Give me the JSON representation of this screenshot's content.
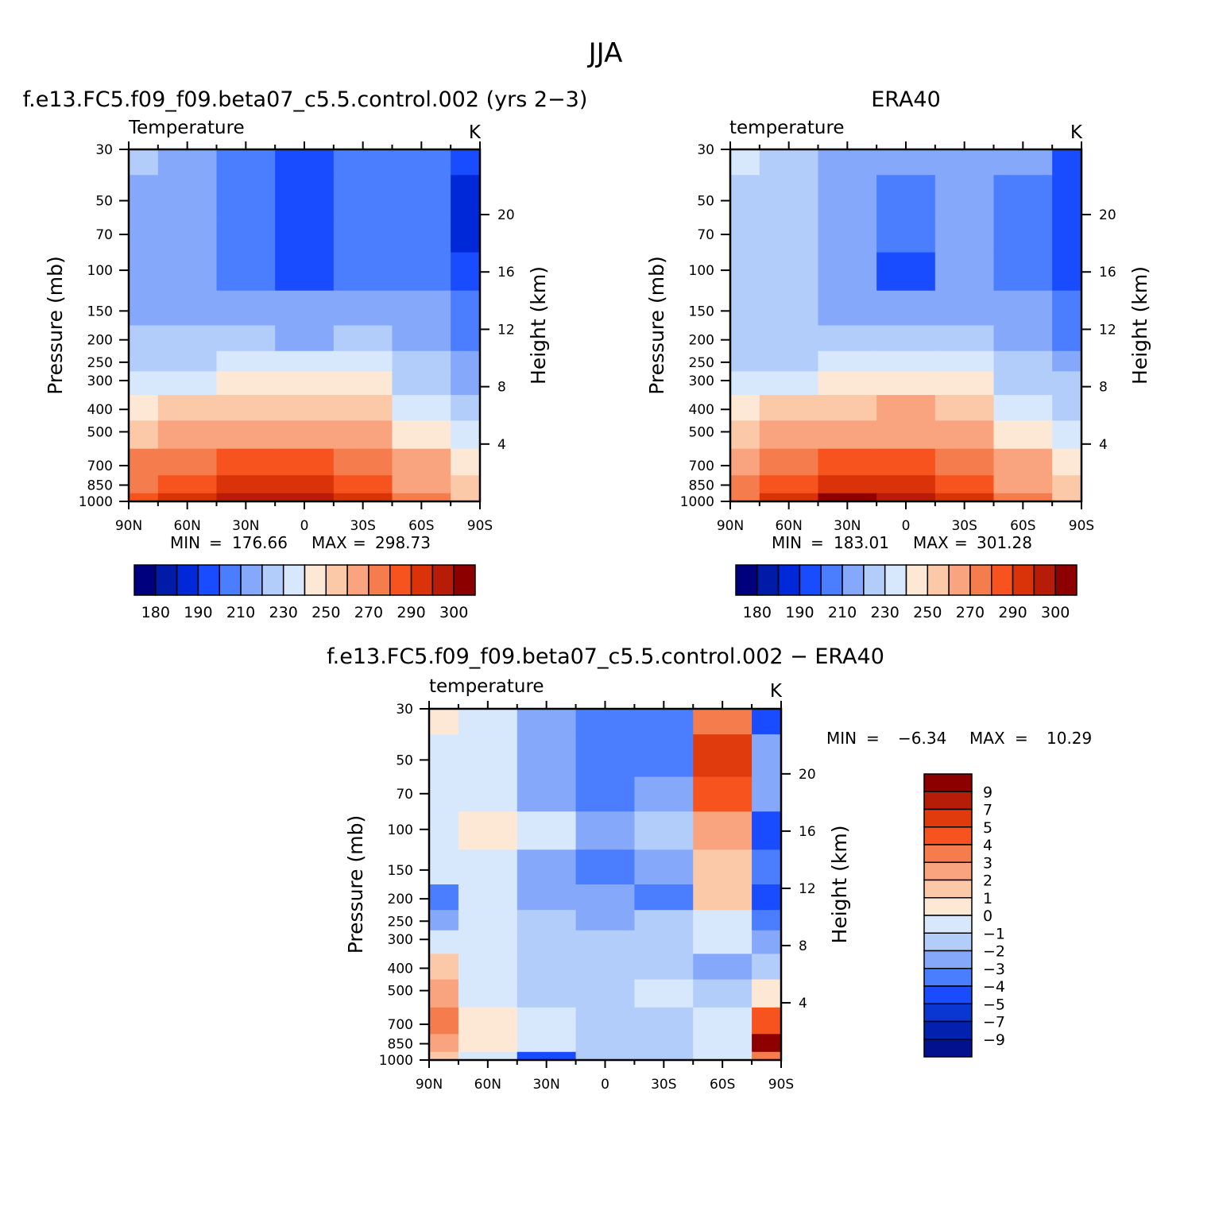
{
  "page": {
    "title": "JJA"
  },
  "colors": {
    "temp_scale": [
      "#00007f",
      "#001ba8",
      "#0028d8",
      "#1a4cff",
      "#4a7dff",
      "#85a8fb",
      "#b3cdfb",
      "#d7e8fd",
      "#fde8d6",
      "#fbc8a8",
      "#f9a47f",
      "#f57c4d",
      "#f6531f",
      "#da3209",
      "#b61c07",
      "#8c0000"
    ],
    "diff_scale": [
      "#02128f",
      "#0221ae",
      "#0a36d1",
      "#1a4cff",
      "#4a7dff",
      "#85a8fb",
      "#b3cdfb",
      "#d7e8fd",
      "#fde8d6",
      "#fbc8a8",
      "#f9a47f",
      "#f57c4d",
      "#f6531f",
      "#e03b0d",
      "#b61c07",
      "#8c0000"
    ]
  },
  "panels": {
    "model": {
      "title": "f.e13.FC5.f09_f09.beta07_c5.5.control.002 (yrs 2−3)",
      "left_label": "Temperature",
      "right_label": "K",
      "min_label": "MIN",
      "min_value": "176.66",
      "max_label": "MAX",
      "max_value": "298.73"
    },
    "era": {
      "title": "ERA40",
      "left_label": "temperature",
      "right_label": "K",
      "min_label": "MIN",
      "min_value": "183.01",
      "max_label": "MAX",
      "max_value": "301.28"
    },
    "diff": {
      "title": "f.e13.FC5.f09_f09.beta07_c5.5.control.002 − ERA40",
      "left_label": "temperature",
      "right_label": "K",
      "min_label": "MIN",
      "min_value": "−6.34",
      "max_label": "MAX",
      "max_value": "10.29"
    }
  },
  "axes": {
    "xlabels": [
      "90N",
      "60N",
      "30N",
      "0",
      "30S",
      "60S",
      "90S"
    ],
    "ylabel": "Pressure (mb)",
    "y2label": "Height (km)",
    "pressure_ticks": [
      "30",
      "50",
      "70",
      "100",
      "150",
      "200",
      "250",
      "300",
      "400",
      "500",
      "700",
      "850",
      "1000"
    ],
    "height_ticks": [
      "20",
      "16",
      "12",
      "8",
      "4"
    ]
  },
  "colorbars": {
    "temp_labels": [
      "180",
      "190",
      "210",
      "230",
      "250",
      "270",
      "290",
      "300"
    ],
    "diff_labels": [
      "9",
      "7",
      "5",
      "4",
      "3",
      "2",
      "1",
      "0",
      "−1",
      "−2",
      "−3",
      "−4",
      "−5",
      "−7",
      "−9"
    ]
  },
  "chart_data": [
    {
      "type": "heatmap",
      "title": "f.e13.FC5.f09_f09.beta07_c5.5.control.002 (yrs 2−3)",
      "subtitle_left": "Temperature",
      "units": "K",
      "xlabel": "",
      "ylabel": "Pressure (mb)",
      "y2label": "Height (km)",
      "x": [
        90,
        60,
        30,
        0,
        -30,
        -60,
        -90
      ],
      "x_tick_labels": [
        "90N",
        "60N",
        "30N",
        "0",
        "30S",
        "60S",
        "90S"
      ],
      "y_pressure_mb": [
        30,
        50,
        70,
        100,
        150,
        200,
        250,
        300,
        400,
        500,
        700,
        850,
        1000
      ],
      "y_log_scale": true,
      "values": [
        [
          223,
          214,
          203,
          199,
          203,
          207,
          190
        ],
        [
          219,
          212,
          203,
          199,
          203,
          205,
          186
        ],
        [
          216,
          211,
          202,
          195,
          202,
          203,
          185
        ],
        [
          215,
          213,
          203,
          190,
          203,
          205,
          190
        ],
        [
          218,
          218,
          214,
          213,
          215,
          213,
          200
        ],
        [
          222,
          221,
          220,
          219,
          220,
          218,
          206
        ],
        [
          226,
          226,
          234,
          236,
          230,
          222,
          212
        ],
        [
          232,
          238,
          244,
          246,
          240,
          226,
          216
        ],
        [
          248,
          252,
          256,
          258,
          252,
          236,
          226
        ],
        [
          255,
          262,
          265,
          266,
          262,
          246,
          232
        ],
        [
          270,
          276,
          280,
          280,
          276,
          262,
          245
        ],
        [
          276,
          285,
          290,
          290,
          284,
          267,
          252
        ],
        [
          280,
          290,
          297,
          298,
          290,
          272,
          257
        ]
      ],
      "min": 176.66,
      "max": 298.73,
      "colorbar_labels": [
        "180",
        "190",
        "210",
        "230",
        "250",
        "270",
        "290",
        "300"
      ]
    },
    {
      "type": "heatmap",
      "title": "ERA40",
      "subtitle_left": "temperature",
      "units": "K",
      "xlabel": "",
      "ylabel": "Pressure (mb)",
      "y2label": "Height (km)",
      "x": [
        90,
        60,
        30,
        0,
        -30,
        -60,
        -90
      ],
      "x_tick_labels": [
        "90N",
        "60N",
        "30N",
        "0",
        "30S",
        "60S",
        "90S"
      ],
      "y_pressure_mb": [
        30,
        50,
        70,
        100,
        150,
        200,
        250,
        300,
        400,
        500,
        700,
        850,
        1000
      ],
      "y_log_scale": true,
      "values": [
        [
          232,
          222,
          215,
          212,
          215,
          210,
          195
        ],
        [
          228,
          222,
          211,
          209,
          211,
          208,
          192
        ],
        [
          228,
          223,
          211,
          203,
          211,
          207,
          190
        ],
        [
          226,
          222,
          210,
          198,
          210,
          205,
          192
        ],
        [
          226,
          222,
          214,
          212,
          216,
          210,
          200
        ],
        [
          228,
          222,
          221,
          221,
          221,
          215,
          205
        ],
        [
          226,
          226,
          234,
          236,
          230,
          222,
          214
        ],
        [
          230,
          238,
          246,
          248,
          242,
          228,
          220
        ],
        [
          244,
          252,
          258,
          260,
          254,
          238,
          228
        ],
        [
          252,
          262,
          268,
          268,
          262,
          248,
          236
        ],
        [
          265,
          275,
          283,
          282,
          277,
          262,
          246
        ],
        [
          272,
          283,
          292,
          291,
          285,
          268,
          252
        ],
        [
          278,
          290,
          300,
          299,
          292,
          272,
          254
        ]
      ],
      "min": 183.01,
      "max": 301.28,
      "colorbar_labels": [
        "180",
        "190",
        "210",
        "230",
        "250",
        "270",
        "290",
        "300"
      ]
    },
    {
      "type": "heatmap",
      "title": "f.e13.FC5.f09_f09.beta07_c5.5.control.002 − ERA40",
      "subtitle_left": "temperature",
      "units": "K",
      "xlabel": "",
      "ylabel": "Pressure (mb)",
      "y2label": "Height (km)",
      "x": [
        90,
        60,
        30,
        0,
        -30,
        -60,
        -90
      ],
      "x_tick_labels": [
        "90N",
        "60N",
        "30N",
        "0",
        "30S",
        "60S",
        "90S"
      ],
      "y_pressure_mb": [
        30,
        50,
        70,
        100,
        150,
        200,
        250,
        300,
        400,
        500,
        700,
        850,
        1000
      ],
      "y_log_scale": true,
      "values": [
        [
          0.5,
          -0.5,
          -2.5,
          -4.0,
          -3.5,
          3.0,
          -4.5
        ],
        [
          -0.5,
          -0.5,
          -3.0,
          -3.5,
          -3.5,
          5.0,
          -3.0
        ],
        [
          -1.0,
          -0.5,
          -2.5,
          -3.5,
          -2.5,
          4.5,
          -3.0
        ],
        [
          -0.5,
          0.5,
          -1.0,
          -2.5,
          -1.5,
          2.5,
          -4.5
        ],
        [
          -1.0,
          -0.5,
          -3.0,
          -4.0,
          -3.0,
          1.5,
          -4.0
        ],
        [
          -3.5,
          -0.5,
          -2.5,
          -3.0,
          -3.5,
          1.0,
          -5.0
        ],
        [
          -2.5,
          -0.5,
          -2.0,
          -2.5,
          -2.0,
          -0.5,
          -3.5
        ],
        [
          -1.0,
          -0.5,
          -2.0,
          -2.0,
          -1.5,
          -1.0,
          -2.5
        ],
        [
          1.5,
          -1.0,
          -1.5,
          -1.5,
          -1.5,
          -2.5,
          -1.5
        ],
        [
          2.0,
          -0.5,
          -1.5,
          -1.5,
          -1.0,
          -1.5,
          0.5
        ],
        [
          3.0,
          0.5,
          -0.5,
          -1.5,
          -1.5,
          -0.5,
          4.5
        ],
        [
          2.0,
          0.5,
          -0.5,
          -1.5,
          -1.5,
          -0.5,
          9.0
        ],
        [
          1.0,
          -1.0,
          -4.5,
          -2.0,
          -1.5,
          -0.5,
          3.0
        ]
      ],
      "min": -6.34,
      "max": 10.29,
      "colorbar_labels": [
        "9",
        "7",
        "5",
        "4",
        "3",
        "2",
        "1",
        "0",
        "−1",
        "−2",
        "−3",
        "−4",
        "−5",
        "−7",
        "−9"
      ]
    }
  ]
}
